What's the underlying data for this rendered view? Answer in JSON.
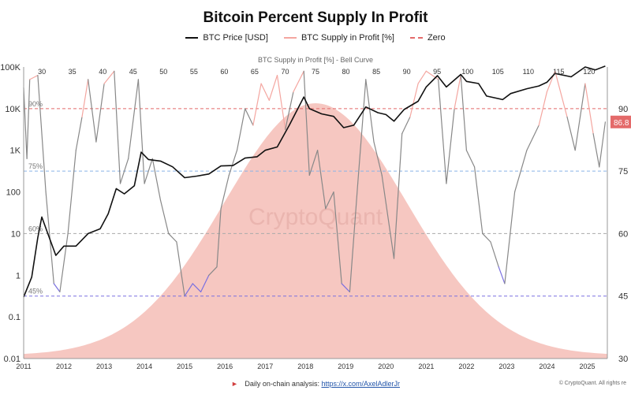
{
  "header": {
    "title": "Bitcoin Percent Supply In Profit"
  },
  "legend": [
    {
      "label": "BTC Price [USD]",
      "color": "#111111"
    },
    {
      "label": "BTC Supply in Profit [%]",
      "color": "#f4a6a0"
    },
    {
      "label": "Zero",
      "color": "#e46a6a"
    }
  ],
  "watermark": "CryptoQuant",
  "footer": {
    "text": "Daily on-chain analysis:",
    "link": "https://x.com/AxelAdlerJr",
    "copyright": "© CryptoQuant. All rights re"
  },
  "chart_data": {
    "type": "line",
    "title": "Bitcoin Percent Supply In Profit",
    "top_axis_label": "BTC Supply in Profit [%] - Bell Curve",
    "top_axis_ticks": [
      30,
      35,
      40,
      45,
      50,
      55,
      60,
      65,
      70,
      75,
      80,
      85,
      90,
      95,
      100,
      105,
      110,
      115,
      120
    ],
    "bell_curve": {
      "mean": 75,
      "sd": 15,
      "range": [
        27,
        123
      ],
      "color": "#f4b9b2"
    },
    "x_ticks": [
      "2011",
      "2012",
      "2013",
      "2014",
      "2015",
      "2016",
      "2017",
      "2018",
      "2019",
      "2020",
      "2021",
      "2022",
      "2023",
      "2024",
      "2025"
    ],
    "x_range": [
      2011.0,
      2025.5
    ],
    "left_axis": {
      "label": "BTC Price [USD]",
      "scale": "log",
      "range": [
        0.01,
        100000
      ],
      "ticks": [
        "100K",
        "10K",
        "1K",
        "100",
        "10",
        "1",
        "0.1",
        "0.01"
      ]
    },
    "right_axis": {
      "label": "BTC Supply in Profit [%]",
      "range": [
        30,
        100
      ],
      "ticks": [
        90,
        75,
        60,
        45,
        30
      ]
    },
    "reference_lines": [
      {
        "value": 90,
        "label": "90%",
        "color": "#e46a6a",
        "style": "dashed"
      },
      {
        "value": 75,
        "label": "75%",
        "color": "#8ab4e8",
        "style": "dashed"
      },
      {
        "value": 60,
        "label": "60%",
        "color": "#aaaaaa",
        "style": "dashed"
      },
      {
        "value": 45,
        "label": "45%",
        "color": "#7a70e0",
        "style": "dashed"
      }
    ],
    "current_value_label": "86.8",
    "series": [
      {
        "name": "BTC Price [USD]",
        "axis": "left",
        "color": "#111111",
        "points": [
          [
            2011.0,
            0.3
          ],
          [
            2011.2,
            0.9
          ],
          [
            2011.35,
            8
          ],
          [
            2011.45,
            25
          ],
          [
            2011.6,
            10
          ],
          [
            2011.8,
            3
          ],
          [
            2012.0,
            5
          ],
          [
            2012.3,
            5
          ],
          [
            2012.6,
            10
          ],
          [
            2012.9,
            13
          ],
          [
            2013.1,
            30
          ],
          [
            2013.3,
            120
          ],
          [
            2013.5,
            90
          ],
          [
            2013.75,
            140
          ],
          [
            2013.92,
            900
          ],
          [
            2014.1,
            600
          ],
          [
            2014.4,
            550
          ],
          [
            2014.7,
            400
          ],
          [
            2015.0,
            220
          ],
          [
            2015.3,
            240
          ],
          [
            2015.6,
            270
          ],
          [
            2015.9,
            420
          ],
          [
            2016.2,
            430
          ],
          [
            2016.5,
            650
          ],
          [
            2016.8,
            700
          ],
          [
            2017.0,
            1000
          ],
          [
            2017.3,
            1200
          ],
          [
            2017.6,
            4000
          ],
          [
            2017.96,
            19000
          ],
          [
            2018.1,
            10000
          ],
          [
            2018.4,
            7500
          ],
          [
            2018.7,
            6500
          ],
          [
            2018.95,
            3500
          ],
          [
            2019.2,
            4000
          ],
          [
            2019.5,
            11000
          ],
          [
            2019.8,
            8000
          ],
          [
            2020.0,
            7200
          ],
          [
            2020.2,
            5000
          ],
          [
            2020.45,
            9500
          ],
          [
            2020.8,
            15000
          ],
          [
            2021.0,
            33000
          ],
          [
            2021.28,
            62000
          ],
          [
            2021.5,
            33000
          ],
          [
            2021.86,
            66000
          ],
          [
            2022.0,
            45000
          ],
          [
            2022.3,
            40000
          ],
          [
            2022.5,
            20000
          ],
          [
            2022.9,
            16500
          ],
          [
            2023.1,
            23000
          ],
          [
            2023.5,
            30000
          ],
          [
            2023.8,
            35000
          ],
          [
            2024.0,
            43000
          ],
          [
            2024.2,
            70000
          ],
          [
            2024.6,
            58000
          ],
          [
            2024.95,
            100000
          ],
          [
            2025.2,
            85000
          ],
          [
            2025.45,
            105000
          ]
        ]
      },
      {
        "name": "BTC Supply in Profit [%]",
        "axis": "right",
        "color": "#888888",
        "points": [
          [
            2011.0,
            95
          ],
          [
            2011.08,
            78
          ],
          [
            2011.15,
            97
          ],
          [
            2011.35,
            98
          ],
          [
            2011.55,
            70
          ],
          [
            2011.75,
            48
          ],
          [
            2011.9,
            46
          ],
          [
            2012.1,
            60
          ],
          [
            2012.3,
            80
          ],
          [
            2012.45,
            88
          ],
          [
            2012.6,
            97
          ],
          [
            2012.8,
            82
          ],
          [
            2013.0,
            96
          ],
          [
            2013.25,
            99
          ],
          [
            2013.4,
            72
          ],
          [
            2013.6,
            78
          ],
          [
            2013.85,
            97
          ],
          [
            2014.0,
            72
          ],
          [
            2014.2,
            78
          ],
          [
            2014.4,
            68
          ],
          [
            2014.6,
            60
          ],
          [
            2014.8,
            58
          ],
          [
            2015.0,
            45
          ],
          [
            2015.2,
            48
          ],
          [
            2015.4,
            46
          ],
          [
            2015.6,
            50
          ],
          [
            2015.8,
            52
          ],
          [
            2015.9,
            66
          ],
          [
            2016.1,
            74
          ],
          [
            2016.3,
            80
          ],
          [
            2016.5,
            90
          ],
          [
            2016.7,
            86
          ],
          [
            2016.9,
            96
          ],
          [
            2017.1,
            92
          ],
          [
            2017.3,
            98
          ],
          [
            2017.5,
            85
          ],
          [
            2017.7,
            94
          ],
          [
            2017.96,
            99
          ],
          [
            2018.1,
            74
          ],
          [
            2018.3,
            80
          ],
          [
            2018.5,
            66
          ],
          [
            2018.7,
            70
          ],
          [
            2018.9,
            48
          ],
          [
            2019.1,
            46
          ],
          [
            2019.3,
            72
          ],
          [
            2019.5,
            97
          ],
          [
            2019.7,
            82
          ],
          [
            2019.9,
            74
          ],
          [
            2020.2,
            54
          ],
          [
            2020.4,
            84
          ],
          [
            2020.6,
            88
          ],
          [
            2020.8,
            96
          ],
          [
            2021.0,
            99
          ],
          [
            2021.3,
            97
          ],
          [
            2021.5,
            72
          ],
          [
            2021.7,
            90
          ],
          [
            2021.86,
            98
          ],
          [
            2022.0,
            80
          ],
          [
            2022.2,
            76
          ],
          [
            2022.4,
            60
          ],
          [
            2022.6,
            58
          ],
          [
            2022.8,
            52
          ],
          [
            2022.95,
            48
          ],
          [
            2023.2,
            70
          ],
          [
            2023.5,
            80
          ],
          [
            2023.8,
            86
          ],
          [
            2024.0,
            94
          ],
          [
            2024.2,
            99
          ],
          [
            2024.5,
            88
          ],
          [
            2024.7,
            80
          ],
          [
            2024.95,
            96
          ],
          [
            2025.15,
            84
          ],
          [
            2025.3,
            76
          ],
          [
            2025.45,
            86.8
          ]
        ]
      }
    ]
  }
}
